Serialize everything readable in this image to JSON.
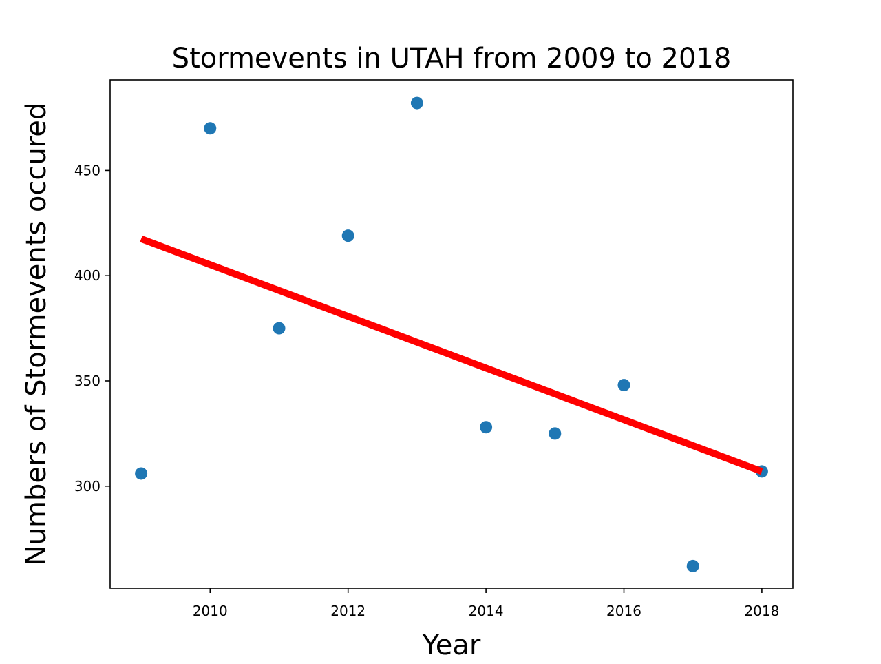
{
  "chart_data": {
    "type": "scatter",
    "title": "Stormevents in UTAH from 2009 to 2018",
    "xlabel": "Year",
    "ylabel": "Numbers of Stormevents occured",
    "xlim": [
      2008.55,
      2018.45
    ],
    "ylim": [
      251.5,
      493
    ],
    "xticks": [
      2010,
      2012,
      2014,
      2016,
      2018
    ],
    "yticks": [
      300,
      350,
      400,
      450
    ],
    "grid": false,
    "legend": "none",
    "series": [
      {
        "kind": "scatter",
        "color": "#1f77b4",
        "points": [
          {
            "x": 2009,
            "y": 306
          },
          {
            "x": 2010,
            "y": 470
          },
          {
            "x": 2011,
            "y": 375
          },
          {
            "x": 2012,
            "y": 419
          },
          {
            "x": 2013,
            "y": 482
          },
          {
            "x": 2014,
            "y": 328
          },
          {
            "x": 2015,
            "y": 325
          },
          {
            "x": 2016,
            "y": 348
          },
          {
            "x": 2017,
            "y": 262
          },
          {
            "x": 2018,
            "y": 307
          }
        ]
      },
      {
        "kind": "line",
        "color": "#ff0000",
        "points": [
          {
            "x": 2009,
            "y": 417.5
          },
          {
            "x": 2018,
            "y": 307
          }
        ]
      }
    ]
  }
}
